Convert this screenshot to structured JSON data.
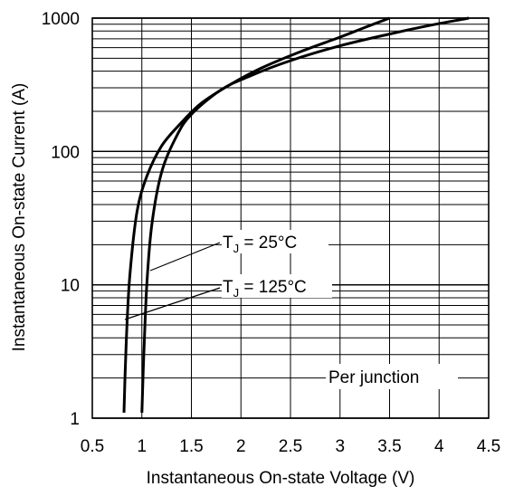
{
  "chart_data": {
    "type": "line",
    "xlabel": "Instantaneous On-state Voltage (V)",
    "ylabel": "Instantaneous On-state Current (A)",
    "xlim": [
      0.5,
      4.5
    ],
    "ylim": [
      1,
      1000
    ],
    "yscale": "log",
    "grid": true,
    "x_ticks": [
      "0.5",
      "1",
      "1.5",
      "2",
      "2.5",
      "3",
      "3.5",
      "4",
      "4.5"
    ],
    "y_ticks": [
      "1",
      "10",
      "100",
      "1000"
    ],
    "series": [
      {
        "name": "25°C",
        "x": [
          0.82,
          0.83,
          0.85,
          0.88,
          0.95,
          1.05,
          1.2,
          1.4,
          1.6,
          1.9,
          2.2,
          2.6,
          3.0,
          3.25,
          3.5
        ],
        "y": [
          1.1,
          2,
          5,
          12,
          35,
          65,
          110,
          165,
          230,
          320,
          420,
          560,
          720,
          850,
          1000
        ]
      },
      {
        "name": "125°C",
        "x": [
          1.0,
          1.02,
          1.05,
          1.1,
          1.2,
          1.35,
          1.5,
          1.8,
          2.1,
          2.5,
          3.0,
          3.5,
          3.9,
          4.3
        ],
        "y": [
          1.1,
          3,
          10,
          28,
          70,
          130,
          190,
          290,
          370,
          480,
          620,
          760,
          880,
          1000
        ]
      }
    ],
    "annotations": [
      {
        "prefix": "T",
        "sub": "J",
        "text": " = 25°C"
      },
      {
        "prefix": "T",
        "sub": "J",
        "text": " = 125°C"
      },
      {
        "text": "Per junction"
      }
    ]
  }
}
